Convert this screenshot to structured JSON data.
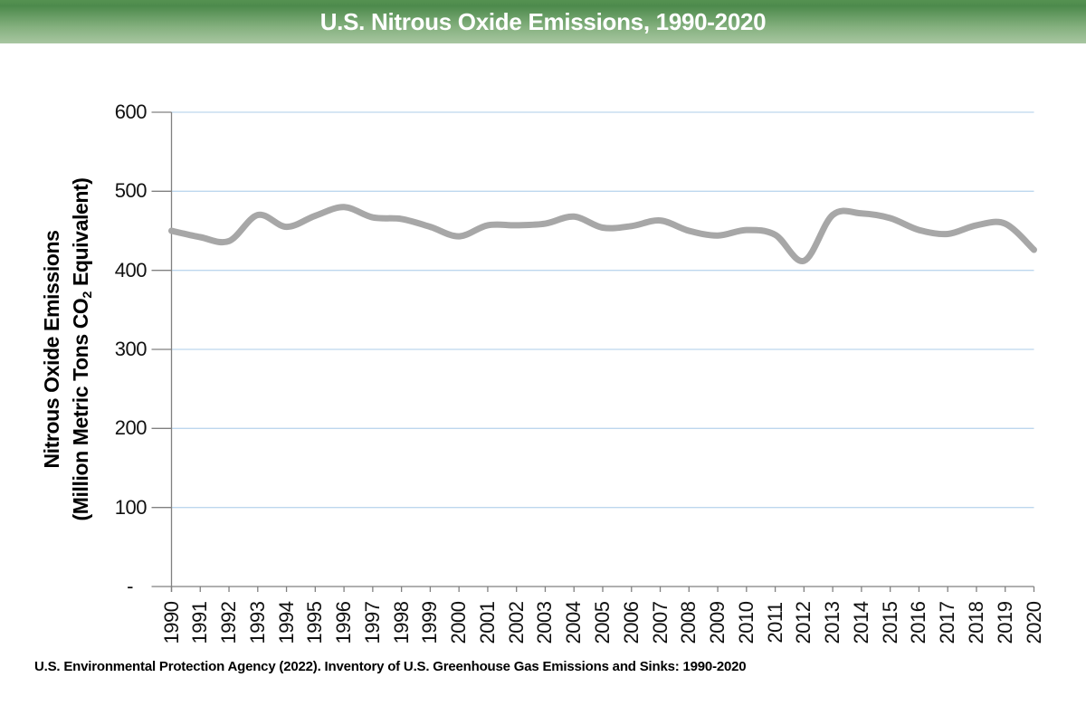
{
  "header": {
    "title": "U.S. Nitrous Oxide Emissions, 1990-2020",
    "banner_green_top": "#4d8a4c",
    "banner_green_bottom": "#a8c6a1",
    "title_color": "#ffffff"
  },
  "chart_data": {
    "type": "line",
    "title": "U.S. Nitrous Oxide Emissions, 1990-2020",
    "x": [
      1990,
      1991,
      1992,
      1993,
      1994,
      1995,
      1996,
      1997,
      1998,
      1999,
      2000,
      2001,
      2002,
      2003,
      2004,
      2005,
      2006,
      2007,
      2008,
      2009,
      2010,
      2011,
      2012,
      2013,
      2014,
      2015,
      2016,
      2017,
      2018,
      2019,
      2020
    ],
    "series": [
      {
        "name": "Nitrous Oxide Emissions",
        "values": [
          450,
          442,
          437,
          470,
          455,
          469,
          480,
          467,
          465,
          455,
          443,
          457,
          457,
          459,
          468,
          454,
          456,
          463,
          450,
          444,
          451,
          445,
          412,
          470,
          472,
          466,
          451,
          446,
          457,
          459,
          426
        ]
      }
    ],
    "xlabel": "",
    "ylabel_line1": "Nitrous Oxide Emissions",
    "ylabel_line2_prefix": "(Million Metric Tons CO",
    "ylabel_line2_sub": "2",
    "ylabel_line2_suffix": " Equivalent)",
    "ylim": [
      0,
      600
    ],
    "ytick_interval": 100,
    "ytick_labels": [
      "600",
      "500",
      "400",
      "300",
      "200",
      "100",
      "-"
    ],
    "grid": true,
    "legend": "none",
    "gridline_color": "#bdd7ee",
    "line_color": "#a7a7a7",
    "line_width": 7,
    "axis_color": "#808080"
  },
  "footer": {
    "source": "U.S. Environmental Protection Agency (2022). Inventory of U.S. Greenhouse Gas Emissions and Sinks: 1990-2020"
  }
}
